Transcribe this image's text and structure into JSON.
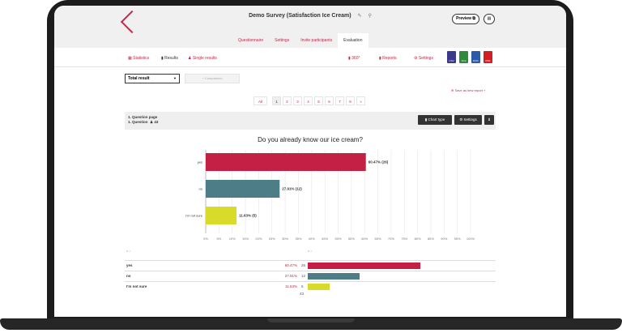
{
  "header": {
    "title": "Demo Survey (Satisfaction Ice Cream)",
    "edit_icon": "pencil-icon",
    "link_icon": "paperclip-icon",
    "preview_label": "Preview",
    "preview_icon": "external-link-icon",
    "print_icon": "printer-icon"
  },
  "tabs": [
    {
      "label": "Questionnaire"
    },
    {
      "label": "Settings"
    },
    {
      "label": "Invite participants"
    },
    {
      "label": "Evaluation"
    }
  ],
  "subnav": {
    "statistics": "Statistics",
    "results": "Results",
    "single_results": "Single results",
    "k360": "360°",
    "reports": "Reports",
    "settings": "Settings",
    "exports": [
      "CSV",
      "XLS",
      "DOC",
      "PDF"
    ]
  },
  "controls": {
    "select_value": "Total result",
    "compare_label": "+ Comparison",
    "save_report": "Save as new report +"
  },
  "pager": {
    "all": "All",
    "pages": [
      "1",
      "2",
      "3",
      "4",
      "5",
      "6",
      "7",
      "8"
    ],
    "next": "»"
  },
  "question": {
    "page": "1. Question page",
    "number": "1. Question",
    "respondents": "43",
    "chart_type_btn": "Chart type",
    "settings_btn": "Settings"
  },
  "colors": {
    "accent": "#c0284a",
    "yes": "#c41f44",
    "no": "#4d7d86",
    "not_sure": "#d9db2a"
  },
  "chart_data": {
    "type": "bar",
    "orientation": "horizontal",
    "title": "Do you already know our ice cream?",
    "categories": [
      "yes",
      "no",
      "I'm not sure"
    ],
    "values": [
      60.47,
      27.91,
      11.63
    ],
    "counts": [
      26,
      12,
      5
    ],
    "data_labels": [
      "60.47% (26)",
      "27.91% (12)",
      "11.63% (5)"
    ],
    "xlim": [
      0,
      100
    ],
    "x_ticks": [
      "0%",
      "5%",
      "10%",
      "15%",
      "20%",
      "25%",
      "30%",
      "35%",
      "40%",
      "45%",
      "50%",
      "55%",
      "60%",
      "65%",
      "70%",
      "75%",
      "80%",
      "85%",
      "90%",
      "95%",
      "100%"
    ],
    "grid": true
  },
  "table": {
    "col_header_left": "n =",
    "col_header_right": "n =",
    "rows": [
      {
        "label": "yes",
        "pct": "60.47%",
        "count": "26"
      },
      {
        "label": "no",
        "pct": "27.91%",
        "count": "12"
      },
      {
        "label": "I'm not sure",
        "pct": "11.63%",
        "count": "5"
      }
    ],
    "total": "43"
  }
}
